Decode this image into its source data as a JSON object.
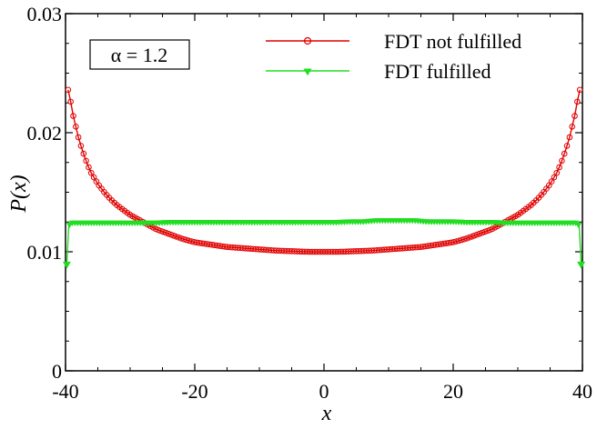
{
  "chart_data": {
    "type": "line",
    "xlabel": "x",
    "ylabel": "P(x)",
    "xlim": [
      -40,
      40
    ],
    "ylim": [
      0,
      0.03
    ],
    "xticks": [
      -40,
      -20,
      0,
      20,
      40
    ],
    "xtick_labels": [
      "-40",
      "-20",
      "0",
      "20",
      "40"
    ],
    "yticks": [
      0,
      0.01,
      0.02,
      0.03
    ],
    "ytick_labels": [
      "0",
      "0.01",
      "0.02",
      "0.03"
    ],
    "grid": false,
    "legend_position": "top-right",
    "annotation": "α = 1.2",
    "series": [
      {
        "name": "FDT not fulfilled",
        "color": "#e00000",
        "marker": "open-circle",
        "x": [
          -39.6,
          -39.2,
          -38.8,
          -38.4,
          -38,
          -37.5,
          -37,
          -36.5,
          -36,
          -35,
          -34,
          -33,
          -32,
          -31,
          -30,
          -28,
          -26,
          -24,
          -22,
          -20,
          -17.5,
          -15,
          -12.5,
          -10,
          -7.5,
          -5,
          -2.5,
          0,
          2.5,
          5,
          7.5,
          10,
          12.5,
          15,
          17.5,
          20,
          22,
          24,
          26,
          28,
          30,
          31,
          32,
          33,
          34,
          35,
          36,
          36.5,
          37,
          37.5,
          38,
          38.4,
          38.8,
          39.2,
          39.6
        ],
        "y": [
          0.0236,
          0.0226,
          0.0214,
          0.0205,
          0.0196,
          0.0187,
          0.0179,
          0.0172,
          0.0166,
          0.0157,
          0.015,
          0.0144,
          0.0139,
          0.0135,
          0.0131,
          0.0125,
          0.0119,
          0.0115,
          0.0111,
          0.0108,
          0.0106,
          0.0104,
          0.0103,
          0.0102,
          0.0101,
          0.01005,
          0.01,
          0.01,
          0.01,
          0.01005,
          0.0101,
          0.0102,
          0.0103,
          0.0104,
          0.0106,
          0.0108,
          0.0111,
          0.0115,
          0.0119,
          0.0125,
          0.0131,
          0.0135,
          0.0139,
          0.0144,
          0.015,
          0.0157,
          0.0166,
          0.0172,
          0.0179,
          0.0187,
          0.0196,
          0.0205,
          0.0214,
          0.0226,
          0.0236
        ]
      },
      {
        "name": "FDT fulfilled",
        "color": "#22dd22",
        "marker": "filled-triangle-down",
        "x": [
          -39.8,
          -39.5,
          -39,
          -38,
          -36,
          -34,
          -32,
          -30,
          -28,
          -26,
          -24,
          -22,
          -20,
          -18,
          -16,
          -14,
          -12,
          -10,
          -8,
          -6,
          -4,
          -2,
          0,
          2,
          4,
          6,
          8,
          10,
          12,
          14,
          16,
          18,
          20,
          22,
          24,
          26,
          28,
          30,
          32,
          34,
          36,
          38,
          39,
          39.5,
          39.8
        ],
        "y": [
          0.0089,
          0.0122,
          0.0124,
          0.0124,
          0.0124,
          0.0124,
          0.0124,
          0.0124,
          0.0124,
          0.0124,
          0.01245,
          0.01245,
          0.01245,
          0.01245,
          0.01245,
          0.01245,
          0.01245,
          0.01245,
          0.01245,
          0.01245,
          0.01245,
          0.01245,
          0.01245,
          0.01245,
          0.0125,
          0.0125,
          0.0126,
          0.0126,
          0.0126,
          0.0126,
          0.0125,
          0.0125,
          0.0125,
          0.01245,
          0.01245,
          0.01245,
          0.0124,
          0.0124,
          0.0124,
          0.0124,
          0.0124,
          0.0124,
          0.0124,
          0.0122,
          0.0089
        ]
      }
    ]
  }
}
